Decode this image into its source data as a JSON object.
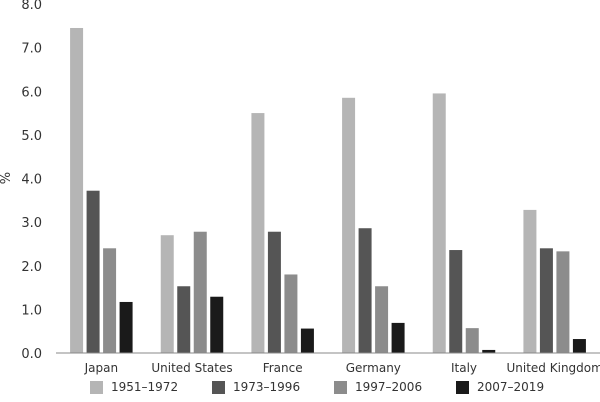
{
  "chart_data": {
    "type": "bar",
    "ylabel": "%",
    "ylim": [
      0,
      8
    ],
    "yticks": [
      "0.0",
      "1.0",
      "2.0",
      "3.0",
      "4.0",
      "5.0",
      "6.0",
      "7.0",
      "8.0"
    ],
    "grid": false,
    "legend_position": "bottom",
    "categories": [
      "Japan",
      "United States",
      "France",
      "Germany",
      "Italy",
      "United Kingdom"
    ],
    "series": [
      {
        "name": "1951–1972",
        "color": "#b5b5b5",
        "values": [
          7.45,
          2.7,
          5.5,
          5.85,
          5.95,
          3.28
        ]
      },
      {
        "name": "1973–1996",
        "color": "#555555",
        "values": [
          3.72,
          1.53,
          2.78,
          2.86,
          2.36,
          2.4
        ]
      },
      {
        "name": "1997–2006",
        "color": "#8c8c8c",
        "values": [
          2.4,
          2.78,
          1.8,
          1.53,
          0.57,
          2.33
        ]
      },
      {
        "name": "2007–2019",
        "color": "#1a1a1a",
        "values": [
          1.17,
          1.29,
          0.56,
          0.69,
          0.07,
          0.32
        ]
      }
    ]
  }
}
